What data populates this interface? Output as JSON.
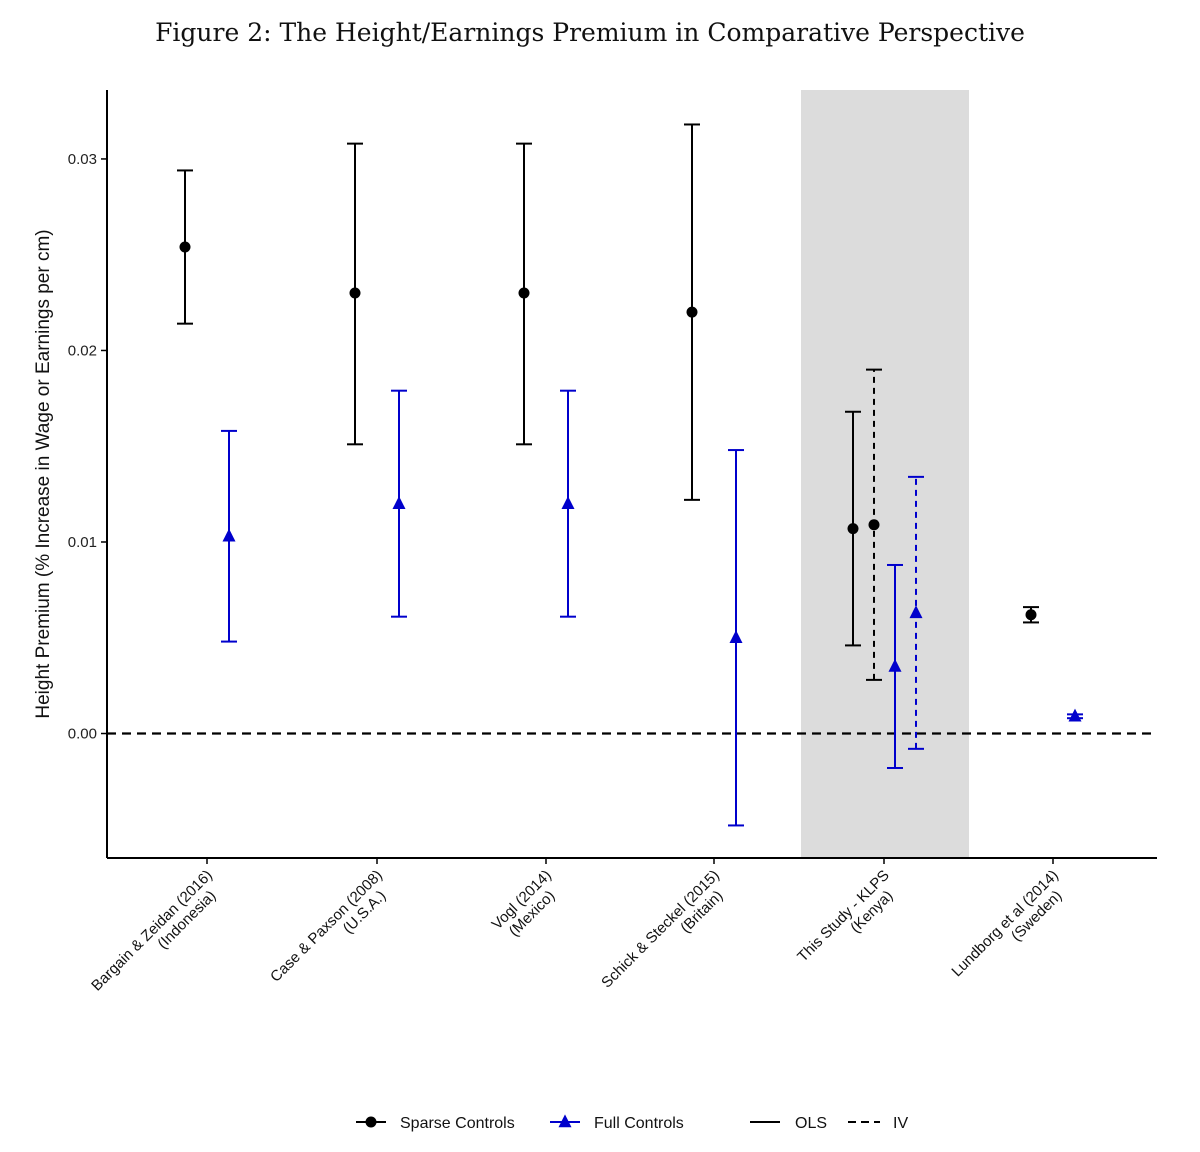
{
  "title": "Figure 2: The Height/Earnings Premium in Comparative Perspective",
  "chart_data": {
    "type": "scatter",
    "subtype": "point-range (coefficient plot with error bars)",
    "ylabel": "Height Premium (% Increase in Wage or Earnings per cm)",
    "xlabel": "",
    "ylim": [
      -0.0065,
      0.0336
    ],
    "yticks": [
      0.0,
      0.01,
      0.02,
      0.03
    ],
    "ytick_labels": [
      "0.00",
      "0.01",
      "0.02",
      "0.03"
    ],
    "reference_line": {
      "y": 0.0,
      "style": "dashed"
    },
    "highlight_category": "This Study - KLPS\n(Kenya)",
    "categories": [
      {
        "line1": "Bargain & Zeidan (2016)",
        "line2": "(Indonesia)"
      },
      {
        "line1": "Case & Paxson (2008)",
        "line2": "(U.S.A.)"
      },
      {
        "line1": "Vogl (2014)",
        "line2": "(Mexico)"
      },
      {
        "line1": "Schick & Steckel (2015)",
        "line2": "(Britain)"
      },
      {
        "line1": "This Study - KLPS",
        "line2": "(Kenya)"
      },
      {
        "line1": "Lundborg et al (2014)",
        "line2": "(Sweden)"
      }
    ],
    "estimates": [
      {
        "category_index": 0,
        "controls": "Sparse",
        "method": "OLS",
        "estimate": 0.0254,
        "ci_low": 0.0214,
        "ci_high": 0.0294
      },
      {
        "category_index": 0,
        "controls": "Full",
        "method": "OLS",
        "estimate": 0.0103,
        "ci_low": 0.0048,
        "ci_high": 0.0158
      },
      {
        "category_index": 1,
        "controls": "Sparse",
        "method": "OLS",
        "estimate": 0.023,
        "ci_low": 0.0151,
        "ci_high": 0.0308
      },
      {
        "category_index": 1,
        "controls": "Full",
        "method": "OLS",
        "estimate": 0.012,
        "ci_low": 0.0061,
        "ci_high": 0.0179
      },
      {
        "category_index": 2,
        "controls": "Sparse",
        "method": "OLS",
        "estimate": 0.023,
        "ci_low": 0.0151,
        "ci_high": 0.0308
      },
      {
        "category_index": 2,
        "controls": "Full",
        "method": "OLS",
        "estimate": 0.012,
        "ci_low": 0.0061,
        "ci_high": 0.0179
      },
      {
        "category_index": 3,
        "controls": "Sparse",
        "method": "OLS",
        "estimate": 0.022,
        "ci_low": 0.0122,
        "ci_high": 0.0318
      },
      {
        "category_index": 3,
        "controls": "Full",
        "method": "OLS",
        "estimate": 0.005,
        "ci_low": -0.0048,
        "ci_high": 0.0148
      },
      {
        "category_index": 4,
        "controls": "Sparse",
        "method": "OLS",
        "estimate": 0.0107,
        "ci_low": 0.0046,
        "ci_high": 0.0168
      },
      {
        "category_index": 4,
        "controls": "Sparse",
        "method": "IV",
        "estimate": 0.0109,
        "ci_low": 0.0028,
        "ci_high": 0.019
      },
      {
        "category_index": 4,
        "controls": "Full",
        "method": "OLS",
        "estimate": 0.0035,
        "ci_low": -0.0018,
        "ci_high": 0.0088
      },
      {
        "category_index": 4,
        "controls": "Full",
        "method": "IV",
        "estimate": 0.0063,
        "ci_low": -0.0008,
        "ci_high": 0.0134
      },
      {
        "category_index": 5,
        "controls": "Sparse",
        "method": "OLS",
        "estimate": 0.0062,
        "ci_low": 0.0058,
        "ci_high": 0.0066
      },
      {
        "category_index": 5,
        "controls": "Full",
        "method": "OLS",
        "estimate": 0.0009,
        "ci_low": 0.0008,
        "ci_high": 0.001
      }
    ],
    "legend": {
      "placement": "bottom",
      "controls": [
        {
          "label": "Sparse Controls",
          "marker": "circle",
          "color": "#000000"
        },
        {
          "label": "Full Controls",
          "marker": "triangle",
          "color": "#0000cc"
        }
      ],
      "methods": [
        {
          "label": "OLS",
          "linestyle": "solid"
        },
        {
          "label": "IV",
          "linestyle": "dashed"
        }
      ]
    }
  },
  "colors": {
    "sparse": "#000000",
    "full": "#0000cc",
    "highlight_band": "#dcdcdc",
    "axis": "#000000"
  }
}
